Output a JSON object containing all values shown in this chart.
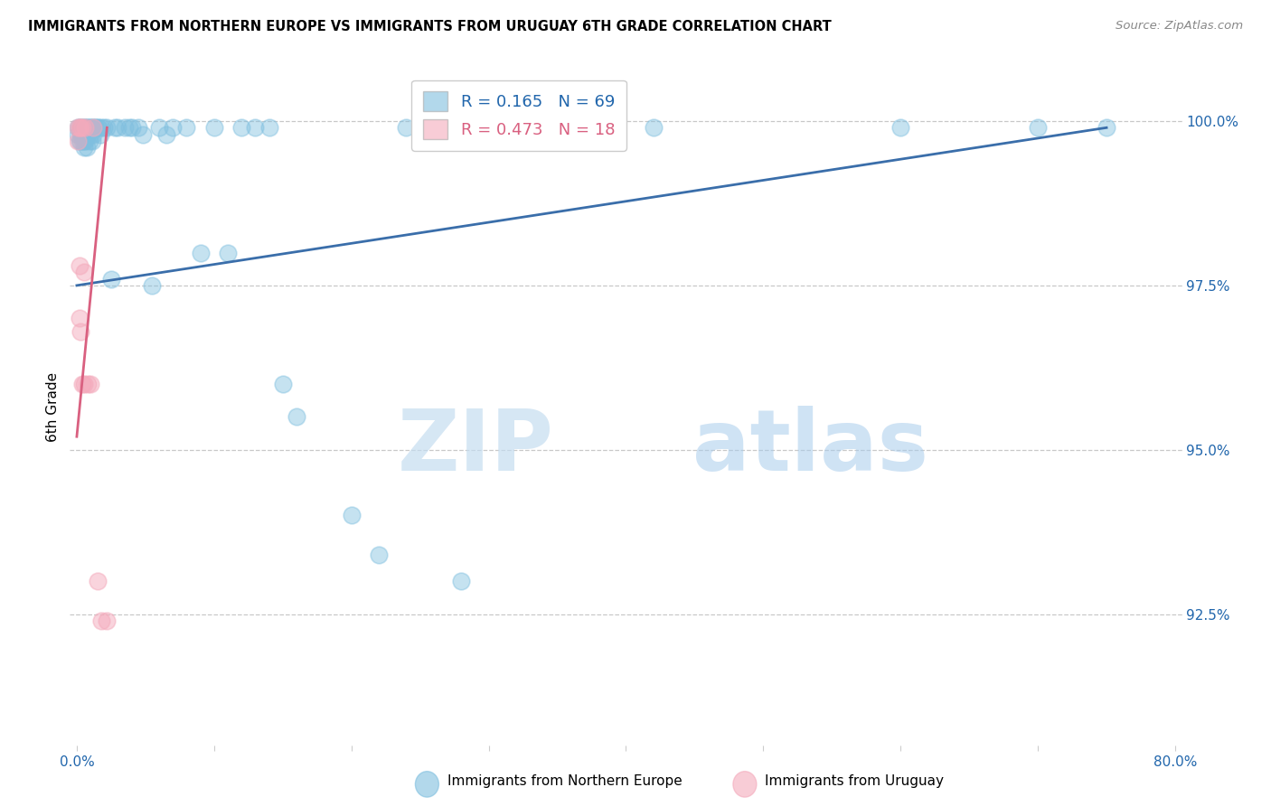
{
  "title": "IMMIGRANTS FROM NORTHERN EUROPE VS IMMIGRANTS FROM URUGUAY 6TH GRADE CORRELATION CHART",
  "source": "Source: ZipAtlas.com",
  "ylabel": "6th Grade",
  "ytick_labels": [
    "100.0%",
    "97.5%",
    "95.0%",
    "92.5%"
  ],
  "ytick_values": [
    1.0,
    0.975,
    0.95,
    0.925
  ],
  "ymin": 0.905,
  "ymax": 1.008,
  "xmin": -0.005,
  "xmax": 0.805,
  "legend_blue_r": "0.165",
  "legend_blue_n": "69",
  "legend_pink_r": "0.473",
  "legend_pink_n": "18",
  "blue_color": "#7fbfdf",
  "pink_color": "#f4aabc",
  "blue_line_color": "#3a6eaa",
  "pink_line_color": "#d96080",
  "watermark_zip": "ZIP",
  "watermark_atlas": "atlas",
  "blue_scatter_x": [
    0.001,
    0.001,
    0.002,
    0.002,
    0.003,
    0.003,
    0.003,
    0.004,
    0.004,
    0.004,
    0.005,
    0.005,
    0.005,
    0.005,
    0.006,
    0.006,
    0.006,
    0.007,
    0.007,
    0.007,
    0.008,
    0.008,
    0.009,
    0.009,
    0.01,
    0.01,
    0.011,
    0.011,
    0.012,
    0.012,
    0.013,
    0.014,
    0.015,
    0.016,
    0.017,
    0.018,
    0.02,
    0.022,
    0.025,
    0.028,
    0.03,
    0.035,
    0.038,
    0.04,
    0.045,
    0.048,
    0.055,
    0.06,
    0.065,
    0.07,
    0.08,
    0.09,
    0.1,
    0.11,
    0.12,
    0.13,
    0.14,
    0.15,
    0.16,
    0.2,
    0.22,
    0.24,
    0.28,
    0.32,
    0.38,
    0.42,
    0.6,
    0.7,
    0.75
  ],
  "blue_scatter_y": [
    0.999,
    0.998,
    0.999,
    0.997,
    0.999,
    0.998,
    0.997,
    0.999,
    0.998,
    0.997,
    0.999,
    0.998,
    0.997,
    0.996,
    0.999,
    0.998,
    0.997,
    0.999,
    0.998,
    0.996,
    0.999,
    0.998,
    0.999,
    0.997,
    0.999,
    0.998,
    0.999,
    0.997,
    0.999,
    0.998,
    0.999,
    0.999,
    0.999,
    0.999,
    0.998,
    0.999,
    0.999,
    0.999,
    0.976,
    0.999,
    0.999,
    0.999,
    0.999,
    0.999,
    0.999,
    0.998,
    0.975,
    0.999,
    0.998,
    0.999,
    0.999,
    0.98,
    0.999,
    0.98,
    0.999,
    0.999,
    0.999,
    0.96,
    0.955,
    0.94,
    0.934,
    0.999,
    0.93,
    0.999,
    0.999,
    0.999,
    0.999,
    0.999,
    0.999
  ],
  "pink_scatter_x": [
    0.001,
    0.001,
    0.002,
    0.002,
    0.002,
    0.003,
    0.003,
    0.004,
    0.004,
    0.005,
    0.005,
    0.006,
    0.008,
    0.01,
    0.012,
    0.015,
    0.018,
    0.022
  ],
  "pink_scatter_y": [
    0.999,
    0.997,
    0.999,
    0.978,
    0.97,
    0.999,
    0.968,
    0.999,
    0.96,
    0.977,
    0.96,
    0.999,
    0.96,
    0.96,
    0.999,
    0.93,
    0.924,
    0.924
  ],
  "blue_line_x": [
    0.0,
    0.75
  ],
  "blue_line_y": [
    0.975,
    0.999
  ],
  "pink_line_x": [
    0.0,
    0.022
  ],
  "pink_line_y": [
    0.952,
    0.999
  ]
}
